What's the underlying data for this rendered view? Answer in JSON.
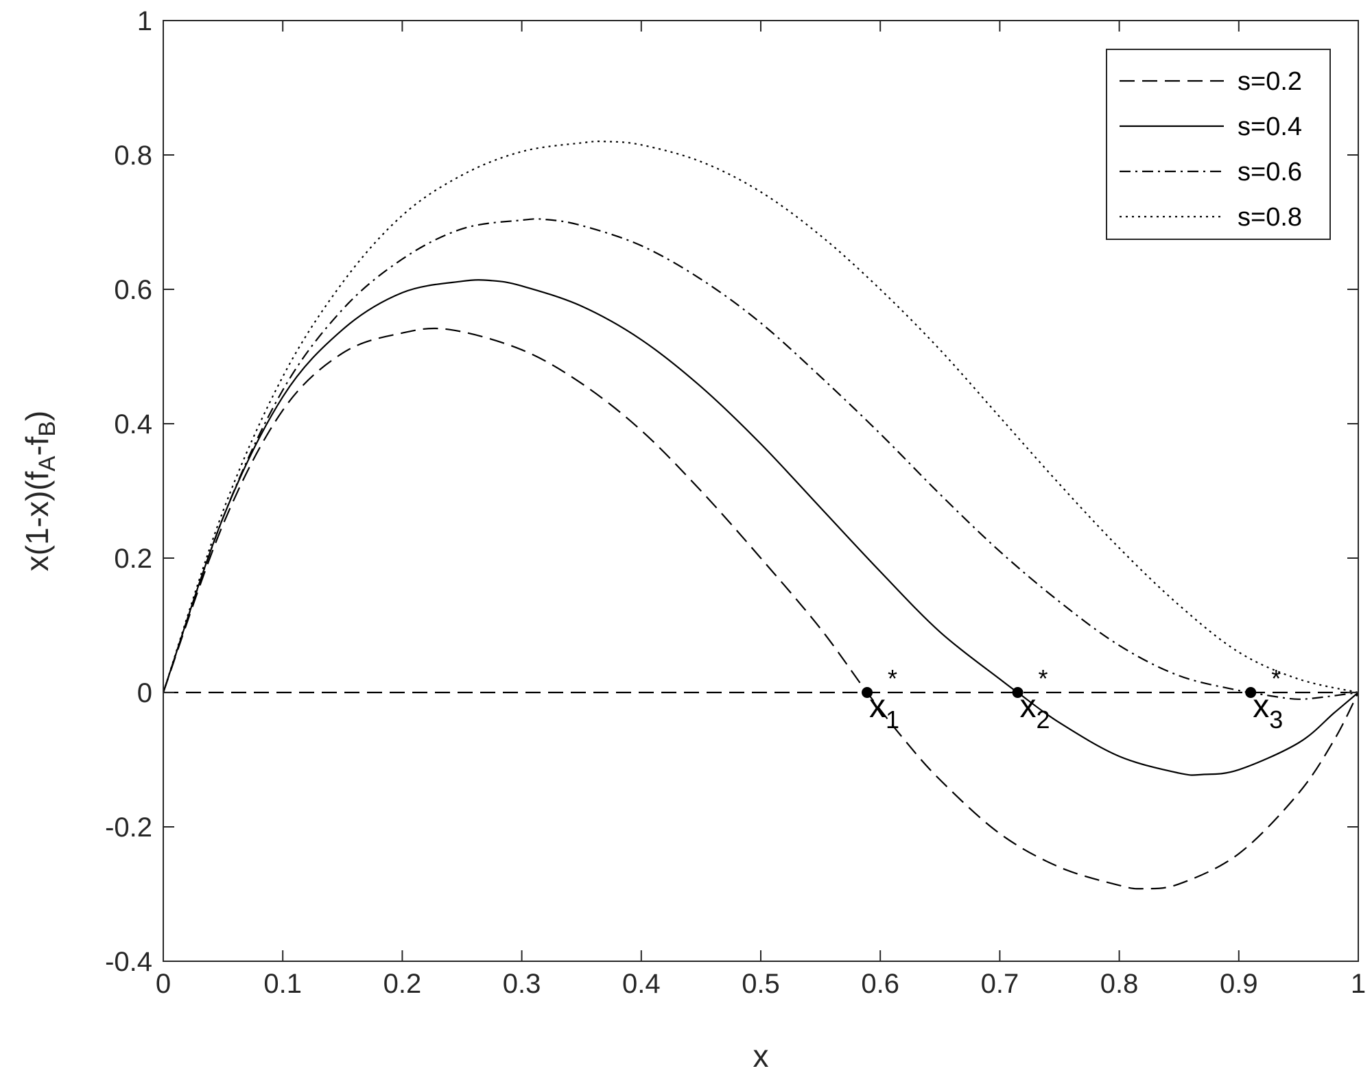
{
  "chart_data": {
    "type": "line",
    "xlabel": "x",
    "ylabel": {
      "prefix": "x(1-x)(f",
      "sub_a": "A",
      "mid": "-f",
      "sub_b": "B",
      "suffix": ")"
    },
    "xlim": [
      0,
      1
    ],
    "ylim": [
      -0.4,
      1
    ],
    "x_ticks": [
      0,
      0.1,
      0.2,
      0.3,
      0.4,
      0.5,
      0.6,
      0.7,
      0.8,
      0.9,
      1
    ],
    "x_tick_labels": [
      "0",
      "0.1",
      "0.2",
      "0.3",
      "0.4",
      "0.5",
      "0.6",
      "0.7",
      "0.8",
      "0.9",
      "1"
    ],
    "y_ticks": [
      -0.4,
      -0.2,
      0,
      0.2,
      0.4,
      0.6,
      0.8,
      1
    ],
    "y_tick_labels": [
      "-0.4",
      "-0.2",
      "0",
      "0.2",
      "0.4",
      "0.6",
      "0.8",
      "1"
    ],
    "grid": false,
    "legend_position": "top-right",
    "series": [
      {
        "name": "s=0.2",
        "style": "dashed",
        "points": [
          [
            0,
            0
          ],
          [
            0.05,
            0.25
          ],
          [
            0.1,
            0.42
          ],
          [
            0.15,
            0.505
          ],
          [
            0.2,
            0.535
          ],
          [
            0.24,
            0.54
          ],
          [
            0.3,
            0.51
          ],
          [
            0.35,
            0.46
          ],
          [
            0.4,
            0.39
          ],
          [
            0.45,
            0.3
          ],
          [
            0.5,
            0.2
          ],
          [
            0.55,
            0.095
          ],
          [
            0.589,
            0
          ],
          [
            0.62,
            -0.07
          ],
          [
            0.65,
            -0.13
          ],
          [
            0.7,
            -0.21
          ],
          [
            0.75,
            -0.26
          ],
          [
            0.8,
            -0.287
          ],
          [
            0.82,
            -0.292
          ],
          [
            0.85,
            -0.285
          ],
          [
            0.9,
            -0.24
          ],
          [
            0.95,
            -0.15
          ],
          [
            0.98,
            -0.07
          ],
          [
            1,
            0
          ]
        ]
      },
      {
        "name": "s=0.4",
        "style": "solid",
        "points": [
          [
            0,
            0
          ],
          [
            0.05,
            0.26
          ],
          [
            0.1,
            0.44
          ],
          [
            0.15,
            0.54
          ],
          [
            0.2,
            0.595
          ],
          [
            0.25,
            0.612
          ],
          [
            0.275,
            0.613
          ],
          [
            0.3,
            0.605
          ],
          [
            0.35,
            0.575
          ],
          [
            0.4,
            0.525
          ],
          [
            0.45,
            0.455
          ],
          [
            0.5,
            0.37
          ],
          [
            0.55,
            0.275
          ],
          [
            0.6,
            0.18
          ],
          [
            0.65,
            0.09
          ],
          [
            0.7,
            0.02
          ],
          [
            0.715,
            0
          ],
          [
            0.75,
            -0.045
          ],
          [
            0.8,
            -0.095
          ],
          [
            0.85,
            -0.12
          ],
          [
            0.87,
            -0.122
          ],
          [
            0.9,
            -0.115
          ],
          [
            0.95,
            -0.075
          ],
          [
            0.98,
            -0.03
          ],
          [
            1,
            0
          ]
        ]
      },
      {
        "name": "s=0.6",
        "style": "dashdot",
        "points": [
          [
            0,
            0
          ],
          [
            0.05,
            0.26
          ],
          [
            0.1,
            0.45
          ],
          [
            0.15,
            0.57
          ],
          [
            0.2,
            0.645
          ],
          [
            0.25,
            0.69
          ],
          [
            0.3,
            0.703
          ],
          [
            0.32,
            0.704
          ],
          [
            0.35,
            0.695
          ],
          [
            0.4,
            0.665
          ],
          [
            0.45,
            0.615
          ],
          [
            0.5,
            0.55
          ],
          [
            0.55,
            0.47
          ],
          [
            0.6,
            0.385
          ],
          [
            0.65,
            0.295
          ],
          [
            0.7,
            0.21
          ],
          [
            0.75,
            0.135
          ],
          [
            0.8,
            0.07
          ],
          [
            0.85,
            0.025
          ],
          [
            0.9,
            0.003
          ],
          [
            0.91,
            0
          ],
          [
            0.93,
            -0.006
          ],
          [
            0.95,
            -0.01
          ],
          [
            0.97,
            -0.007
          ],
          [
            1,
            0
          ]
        ]
      },
      {
        "name": "s=0.8",
        "style": "dotted",
        "points": [
          [
            0,
            0
          ],
          [
            0.05,
            0.27
          ],
          [
            0.1,
            0.47
          ],
          [
            0.15,
            0.61
          ],
          [
            0.2,
            0.71
          ],
          [
            0.25,
            0.77
          ],
          [
            0.3,
            0.805
          ],
          [
            0.35,
            0.818
          ],
          [
            0.37,
            0.82
          ],
          [
            0.4,
            0.815
          ],
          [
            0.45,
            0.79
          ],
          [
            0.5,
            0.745
          ],
          [
            0.55,
            0.68
          ],
          [
            0.6,
            0.6
          ],
          [
            0.65,
            0.51
          ],
          [
            0.7,
            0.41
          ],
          [
            0.75,
            0.31
          ],
          [
            0.8,
            0.215
          ],
          [
            0.85,
            0.13
          ],
          [
            0.9,
            0.06
          ],
          [
            0.95,
            0.02
          ],
          [
            1,
            0
          ]
        ]
      },
      {
        "name": "",
        "style": "dashed",
        "points": [
          [
            0,
            0
          ],
          [
            1,
            0
          ]
        ]
      }
    ],
    "equilibria": [
      {
        "x": 0.589,
        "y": 0,
        "label": "x",
        "sub": "1",
        "sup": "*"
      },
      {
        "x": 0.715,
        "y": 0,
        "label": "x",
        "sub": "2",
        "sup": "*"
      },
      {
        "x": 0.91,
        "y": 0,
        "label": "x",
        "sub": "3",
        "sup": "*"
      }
    ]
  }
}
